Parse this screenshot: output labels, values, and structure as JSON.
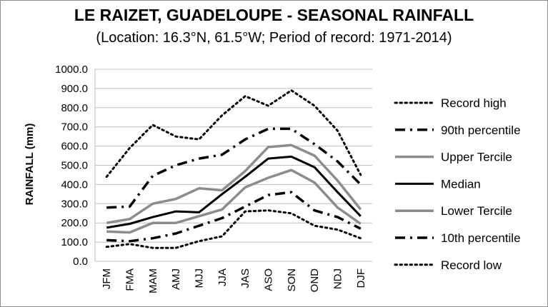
{
  "chart_data": {
    "type": "line",
    "title": "LE RAIZET, GUADELOUPE - SEASONAL RAINFALL",
    "subtitle": "(Location: 16.3°N, 61.5°W; Period of record: 1971-2014)",
    "xlabel": "",
    "ylabel": "RAINFALL (mm)",
    "ylim": [
      0,
      1000
    ],
    "yticks": [
      "0.0",
      "100.0",
      "200.0",
      "300.0",
      "400.0",
      "500.0",
      "600.0",
      "700.0",
      "800.0",
      "900.0",
      "1000.0"
    ],
    "categories": [
      "JFM",
      "FMA",
      "MAM",
      "AMJ",
      "MJJ",
      "JJA",
      "JAS",
      "ASO",
      "SON",
      "OND",
      "NDJ",
      "DJF"
    ],
    "grid": true,
    "legend_position": "right",
    "series": [
      {
        "name": "Record high",
        "style": "dotted",
        "color": "#000000",
        "values": [
          440,
          590,
          710,
          650,
          635,
          760,
          860,
          810,
          890,
          810,
          680,
          450
        ]
      },
      {
        "name": "90th percentile",
        "style": "dashdot",
        "color": "#000000",
        "values": [
          280,
          285,
          445,
          500,
          535,
          555,
          635,
          690,
          690,
          610,
          520,
          400
        ]
      },
      {
        "name": "Upper Tercile",
        "style": "solid-gray",
        "color": "#8c8c8c",
        "values": [
          200,
          220,
          300,
          325,
          380,
          370,
          470,
          595,
          605,
          550,
          420,
          270
        ]
      },
      {
        "name": "Median",
        "style": "solid",
        "color": "#000000",
        "values": [
          175,
          195,
          230,
          260,
          255,
          350,
          440,
          535,
          545,
          490,
          360,
          235
        ]
      },
      {
        "name": "Lower Tercile",
        "style": "solid-gray",
        "color": "#8c8c8c",
        "values": [
          155,
          150,
          200,
          200,
          235,
          270,
          385,
          435,
          475,
          410,
          280,
          195
        ]
      },
      {
        "name": "10th percentile",
        "style": "dashdot",
        "color": "#000000",
        "values": [
          110,
          105,
          120,
          145,
          185,
          225,
          285,
          345,
          360,
          265,
          230,
          170
        ]
      },
      {
        "name": "Record low",
        "style": "dotted",
        "color": "#000000",
        "values": [
          75,
          90,
          70,
          70,
          105,
          130,
          260,
          265,
          250,
          185,
          165,
          120
        ]
      }
    ]
  }
}
